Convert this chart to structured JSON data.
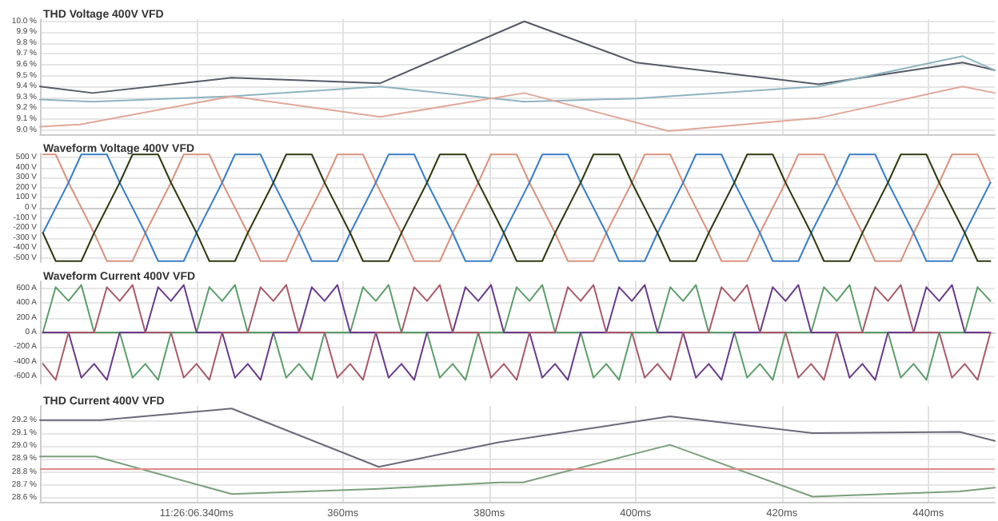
{
  "chart_data": [
    {
      "type": "line",
      "title": "THD Voltage 400V VFD",
      "xlim": [
        318.6,
        449.1
      ],
      "xticks": [
        {
          "value": 340,
          "label": null
        },
        {
          "value": 360,
          "label": null
        },
        {
          "value": 380,
          "label": null
        },
        {
          "value": 400,
          "label": null
        },
        {
          "value": 420,
          "label": null
        },
        {
          "value": 440,
          "label": null
        }
      ],
      "ylim": [
        8.96,
        10.02
      ],
      "yticks": [
        {
          "value": 9.0,
          "label": "9.0 %"
        },
        {
          "value": 9.1,
          "label": "9.1 %"
        },
        {
          "value": 9.2,
          "label": "9.2 %"
        },
        {
          "value": 9.3,
          "label": "9.3 %"
        },
        {
          "value": 9.4,
          "label": "9.4 %"
        },
        {
          "value": 9.5,
          "label": "9.5 %"
        },
        {
          "value": 9.6,
          "label": "9.6 %"
        },
        {
          "value": 9.7,
          "label": "9.7 %"
        },
        {
          "value": 9.8,
          "label": "9.8 %"
        },
        {
          "value": 9.9,
          "label": "9.9 %"
        },
        {
          "value": 10.0,
          "label": "10.0 %"
        }
      ],
      "grid": true,
      "marker": "none",
      "line_style": "solid",
      "tick_labels": "y",
      "series": [
        {
          "color": "#555a66",
          "x": [
            318.6,
            325.8,
            344.8,
            365.1,
            384.8,
            400.1,
            425.0,
            444.7,
            449.1
          ],
          "values": [
            9.4,
            9.34,
            9.48,
            9.43,
            10.0,
            9.62,
            9.42,
            9.62,
            9.55
          ]
        },
        {
          "color": "#8fb3c0",
          "x": [
            318.6,
            325.8,
            344.8,
            365.1,
            384.8,
            400.1,
            425.0,
            444.7,
            449.1
          ],
          "values": [
            9.28,
            9.26,
            9.31,
            9.4,
            9.26,
            9.29,
            9.4,
            9.68,
            9.55
          ]
        },
        {
          "color": "#e0a898",
          "x": [
            318.6,
            324.1,
            344.8,
            365.1,
            384.8,
            404.5,
            425.0,
            444.7,
            449.1
          ],
          "values": [
            9.03,
            9.05,
            9.31,
            9.12,
            9.34,
            8.99,
            9.11,
            9.4,
            9.34
          ]
        }
      ]
    },
    {
      "type": "line",
      "title": "Waveform Voltage 400V VFD",
      "xlim": [
        318.6,
        449.1
      ],
      "xticks": [
        {
          "value": 340,
          "label": null
        },
        {
          "value": 360,
          "label": null
        },
        {
          "value": 380,
          "label": null
        },
        {
          "value": 400,
          "label": null
        },
        {
          "value": 420,
          "label": null
        },
        {
          "value": 440,
          "label": null
        }
      ],
      "ylim": [
        -540,
        540
      ],
      "yticks": [
        {
          "value": -500,
          "label": "-500 V"
        },
        {
          "value": -400,
          "label": "-400 V"
        },
        {
          "value": -300,
          "label": "-300 V"
        },
        {
          "value": -200,
          "label": "-200 V"
        },
        {
          "value": -100,
          "label": "-100 V"
        },
        {
          "value": 0,
          "label": "0 V"
        },
        {
          "value": 100,
          "label": "100 V"
        },
        {
          "value": 200,
          "label": "200 V"
        },
        {
          "value": 300,
          "label": "300 V"
        },
        {
          "value": 400,
          "label": "400 V"
        },
        {
          "value": 500,
          "label": "500 V"
        }
      ],
      "grid": true,
      "marker": "none",
      "line_style": "solid",
      "tick_labels": "y",
      "x": [
        319,
        320.75,
        322.5,
        324.25,
        326,
        327.75,
        329.5,
        331.25,
        333,
        334.75,
        336.5,
        338.25,
        340,
        341.75,
        343.5,
        345.25,
        347,
        348.75,
        350.5,
        352.25,
        354,
        355.75,
        357.5,
        359.25,
        361,
        362.75,
        364.5,
        366.25,
        368,
        369.75,
        371.5,
        373.25,
        375,
        376.75,
        378.5,
        380.25,
        382,
        383.75,
        385.5,
        387.25,
        389,
        390.75,
        392.5,
        394.25,
        396,
        397.75,
        399.5,
        401.25,
        403,
        404.75,
        406.5,
        408.25,
        410,
        411.75,
        413.5,
        415.25,
        417,
        418.75,
        420.5,
        422.25,
        424,
        425.75,
        427.5,
        429.25,
        431,
        432.75,
        434.5,
        436.25,
        438,
        439.75,
        441.5,
        443.25,
        445,
        446.75,
        448.5
      ],
      "series": [
        {
          "color": "#d9937e",
          "values": [
            530,
            530,
            250,
            0,
            -250,
            -530,
            -530,
            -530,
            -250,
            0,
            250,
            530,
            530,
            530,
            250,
            0,
            -250,
            -530,
            -530,
            -530,
            -250,
            0,
            250,
            530,
            530,
            530,
            250,
            0,
            -250,
            -530,
            -530,
            -530,
            -250,
            0,
            250,
            530,
            530,
            530,
            250,
            0,
            -250,
            -530,
            -530,
            -530,
            -250,
            0,
            250,
            530,
            530,
            530,
            250,
            0,
            -250,
            -530,
            -530,
            -530,
            -250,
            0,
            250,
            530,
            530,
            530,
            250,
            0,
            -250,
            -530,
            -530,
            -530,
            -250,
            0,
            250,
            530,
            530,
            530,
            250
          ]
        },
        {
          "color": "#3a7fc8",
          "values": [
            -250,
            0,
            250,
            530,
            530,
            530,
            250,
            0,
            -250,
            -530,
            -530,
            -530,
            -250,
            0,
            250,
            530,
            530,
            530,
            250,
            0,
            -250,
            -530,
            -530,
            -530,
            -250,
            0,
            250,
            530,
            530,
            530,
            250,
            0,
            -250,
            -530,
            -530,
            -530,
            -250,
            0,
            250,
            530,
            530,
            530,
            250,
            0,
            -250,
            -530,
            -530,
            -530,
            -250,
            0,
            250,
            530,
            530,
            530,
            250,
            0,
            -250,
            -530,
            -530,
            -530,
            -250,
            0,
            250,
            530,
            530,
            530,
            250,
            0,
            -250,
            -530,
            -530,
            -530,
            -250,
            0,
            250
          ]
        },
        {
          "color": "#2e3a10",
          "values": [
            -250,
            -530,
            -530,
            -530,
            -250,
            0,
            250,
            530,
            530,
            530,
            250,
            0,
            -250,
            -530,
            -530,
            -530,
            -250,
            0,
            250,
            530,
            530,
            530,
            250,
            0,
            -250,
            -530,
            -530,
            -530,
            -250,
            0,
            250,
            530,
            530,
            530,
            250,
            0,
            -250,
            -530,
            -530,
            -530,
            -250,
            0,
            250,
            530,
            530,
            530,
            250,
            0,
            -250,
            -530,
            -530,
            -530,
            -250,
            0,
            250,
            530,
            530,
            530,
            250,
            0,
            -250,
            -530,
            -530,
            -530,
            -250,
            0,
            250,
            530,
            530,
            530,
            250,
            0,
            -250,
            -530,
            -530
          ]
        }
      ]
    },
    {
      "type": "line",
      "title": "Waveform Current 400V VFD",
      "xlim": [
        318.6,
        449.1
      ],
      "xticks": [
        {
          "value": 340,
          "label": null
        },
        {
          "value": 360,
          "label": null
        },
        {
          "value": 380,
          "label": null
        },
        {
          "value": 400,
          "label": null
        },
        {
          "value": 420,
          "label": null
        },
        {
          "value": 440,
          "label": null
        }
      ],
      "ylim": [
        -700,
        700
      ],
      "yticks": [
        {
          "value": -600,
          "label": "-600 A"
        },
        {
          "value": -400,
          "label": "-400 A"
        },
        {
          "value": -200,
          "label": "-200 A"
        },
        {
          "value": 0,
          "label": "0 A"
        },
        {
          "value": 200,
          "label": "200 A"
        },
        {
          "value": 400,
          "label": "400 A"
        },
        {
          "value": 600,
          "label": "600 A"
        }
      ],
      "grid": true,
      "marker": "none",
      "line_style": "solid",
      "tick_labels": "y",
      "x": [
        319,
        320.75,
        322.5,
        324.25,
        326,
        327.75,
        329.5,
        331.25,
        333,
        334.75,
        336.5,
        338.25,
        340,
        341.75,
        343.5,
        345.25,
        347,
        348.75,
        350.5,
        352.25,
        354,
        355.75,
        357.5,
        359.25,
        361,
        362.75,
        364.5,
        366.25,
        368,
        369.75,
        371.5,
        373.25,
        375,
        376.75,
        378.5,
        380.25,
        382,
        383.75,
        385.5,
        387.25,
        389,
        390.75,
        392.5,
        394.25,
        396,
        397.75,
        399.5,
        401.25,
        403,
        404.75,
        406.5,
        408.25,
        410,
        411.75,
        413.5,
        415.25,
        417,
        418.75,
        420.5,
        422.25,
        424,
        425.75,
        427.5,
        429.25,
        431,
        432.75,
        434.5,
        436.25,
        438,
        439.75,
        441.5,
        443.25,
        445,
        446.75,
        448.5
      ],
      "series": [
        {
          "color": "#5c9e6a",
          "values": [
            0,
            620,
            430,
            650,
            0,
            0,
            0,
            -620,
            -430,
            -650,
            0,
            0,
            0,
            620,
            430,
            650,
            0,
            0,
            0,
            -620,
            -430,
            -650,
            0,
            0,
            0,
            620,
            430,
            650,
            0,
            0,
            0,
            -620,
            -430,
            -650,
            0,
            0,
            0,
            620,
            430,
            650,
            0,
            0,
            0,
            -620,
            -430,
            -650,
            0,
            0,
            0,
            620,
            430,
            650,
            0,
            0,
            0,
            -620,
            -430,
            -650,
            0,
            0,
            0,
            620,
            430,
            650,
            0,
            0,
            0,
            -620,
            -430,
            -650,
            0,
            0,
            0,
            620,
            430
          ]
        },
        {
          "color": "#6a3a8a",
          "values": [
            0,
            0,
            0,
            -620,
            -430,
            -650,
            0,
            0,
            0,
            620,
            430,
            650,
            0,
            0,
            0,
            -620,
            -430,
            -650,
            0,
            0,
            0,
            620,
            430,
            650,
            0,
            0,
            0,
            -620,
            -430,
            -650,
            0,
            0,
            0,
            620,
            430,
            650,
            0,
            0,
            0,
            -620,
            -430,
            -650,
            0,
            0,
            0,
            620,
            430,
            650,
            0,
            0,
            0,
            -620,
            -430,
            -650,
            0,
            0,
            0,
            620,
            430,
            650,
            0,
            0,
            0,
            -620,
            -430,
            -650,
            0,
            0,
            0,
            620,
            430,
            650,
            0,
            0,
            0
          ]
        },
        {
          "color": "#a85a6a",
          "values": [
            -430,
            -650,
            0,
            0,
            0,
            620,
            430,
            650,
            0,
            0,
            0,
            -620,
            -430,
            -650,
            0,
            0,
            0,
            620,
            430,
            650,
            0,
            0,
            0,
            -620,
            -430,
            -650,
            0,
            0,
            0,
            620,
            430,
            650,
            0,
            0,
            0,
            -620,
            -430,
            -650,
            0,
            0,
            0,
            620,
            430,
            650,
            0,
            0,
            0,
            -620,
            -430,
            -650,
            0,
            0,
            0,
            620,
            430,
            650,
            0,
            0,
            0,
            -620,
            -430,
            -650,
            0,
            0,
            0,
            620,
            430,
            650,
            0,
            0,
            0,
            -620,
            -430,
            -650,
            0
          ]
        }
      ]
    },
    {
      "type": "line",
      "title": "THD Current 400V VFD",
      "xlim": [
        318.6,
        449.1
      ],
      "xticks": [
        {
          "value": 340,
          "label": "11:26:06.340ms"
        },
        {
          "value": 360,
          "label": "360ms"
        },
        {
          "value": 380,
          "label": "380ms"
        },
        {
          "value": 400,
          "label": "400ms"
        },
        {
          "value": 420,
          "label": "420ms"
        },
        {
          "value": 440,
          "label": "440ms"
        }
      ],
      "ylim": [
        28.57,
        29.31
      ],
      "yticks": [
        {
          "value": 28.6,
          "label": "28.6 %"
        },
        {
          "value": 28.7,
          "label": "28.7 %"
        },
        {
          "value": 28.8,
          "label": "28.8 %"
        },
        {
          "value": 28.9,
          "label": "28.9 %"
        },
        {
          "value": 29.0,
          "label": "29.0 %"
        },
        {
          "value": 29.1,
          "label": "29.1 %"
        },
        {
          "value": 29.2,
          "label": "29.2 %"
        }
      ],
      "grid": true,
      "marker": "none",
      "line_style": "solid",
      "ref_lines": [
        {
          "axis": "y",
          "value": 28.82,
          "color": "#e08a8a"
        }
      ],
      "series": [
        {
          "color": "#6a6a7a",
          "x": [
            318.6,
            326.9,
            344.8,
            364.9,
            381.3,
            404.7,
            424.2,
            444.3,
            449.1
          ],
          "values": [
            29.2,
            29.2,
            29.29,
            28.84,
            29.03,
            29.23,
            29.1,
            29.11,
            29.04
          ]
        },
        {
          "color": "#7aa07a",
          "x": [
            318.6,
            326.2,
            344.8,
            364.9,
            381.3,
            384.6,
            404.7,
            424.2,
            444.3,
            449.1
          ],
          "values": [
            28.92,
            28.92,
            28.63,
            28.67,
            28.72,
            28.72,
            29.01,
            28.61,
            28.65,
            28.68
          ]
        }
      ]
    }
  ]
}
